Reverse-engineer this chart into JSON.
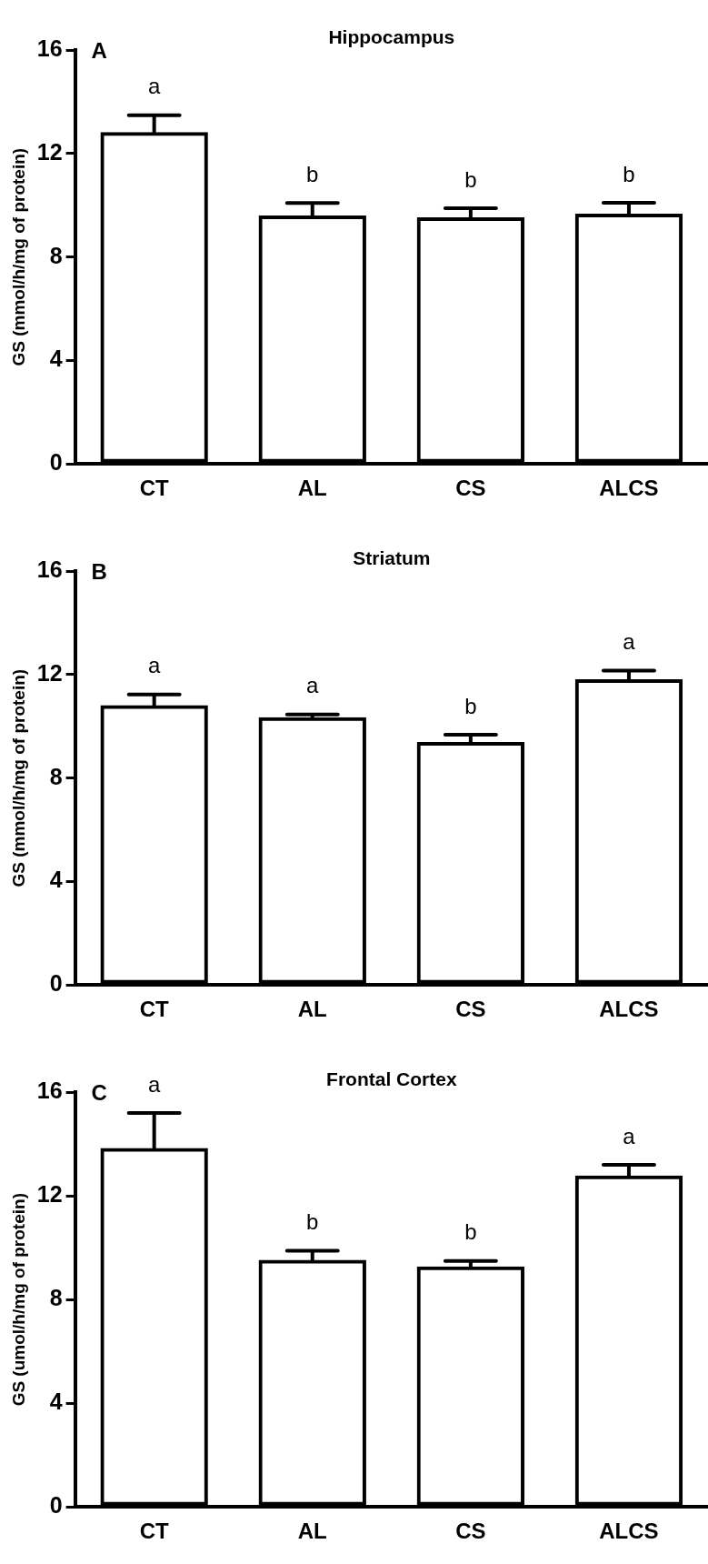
{
  "chart_data": [
    {
      "type": "bar",
      "title": "Hippocampus",
      "ylabel": "GS (mmol/h/mg of protein)",
      "categories": [
        "CT",
        "AL",
        "CS",
        "ALCS"
      ],
      "values": [
        12.83,
        9.61,
        9.54,
        9.68
      ],
      "errors": [
        [
          12.83,
          13.48
        ],
        [
          9.61,
          10.09
        ],
        [
          9.54,
          9.89
        ],
        [
          9.68,
          10.1
        ]
      ],
      "colors": [
        "#000000",
        "#000000",
        "#000000",
        "#000000"
      ],
      "ylim": [
        0,
        16
      ],
      "yticks": [
        0,
        4,
        8,
        12,
        16
      ],
      "annotations": [
        "A",
        "a",
        "b",
        "b",
        "b"
      ]
    },
    {
      "type": "bar",
      "title": "Striatum",
      "ylabel": "GS (mmol/h/mg of protein)",
      "categories": [
        "CT",
        "AL",
        "CS",
        "ALCS"
      ],
      "values": [
        10.82,
        10.35,
        9.4,
        11.82
      ],
      "errors": [
        [
          10.82,
          11.23
        ],
        [
          10.35,
          10.46
        ],
        [
          9.4,
          9.68
        ],
        [
          11.82,
          12.16
        ]
      ],
      "colors": [
        "#000000",
        "#000000",
        "#000000",
        "#000000"
      ],
      "ylim": [
        0,
        16
      ],
      "yticks": [
        0,
        4,
        8,
        12,
        16
      ],
      "annotations": [
        "B",
        "a",
        "a",
        "b",
        "a"
      ]
    },
    {
      "type": "bar",
      "title": "Frontal Cortex",
      "ylabel": "GS (umol/h/mg of protein)",
      "categories": [
        "CT",
        "AL",
        "CS",
        "ALCS"
      ],
      "values": [
        13.85,
        9.53,
        9.28,
        12.79
      ],
      "errors": [
        [
          13.85,
          15.2
        ],
        [
          9.53,
          9.88
        ],
        [
          9.28,
          9.49
        ],
        [
          12.79,
          13.2
        ]
      ],
      "colors": [
        "#000000",
        "#000000",
        "#000000",
        "#000000"
      ],
      "ylim": [
        0,
        16
      ],
      "yticks": [
        0,
        4,
        8,
        12,
        16
      ],
      "annotations": [
        "C",
        "a",
        "b",
        "b",
        "a"
      ]
    }
  ]
}
